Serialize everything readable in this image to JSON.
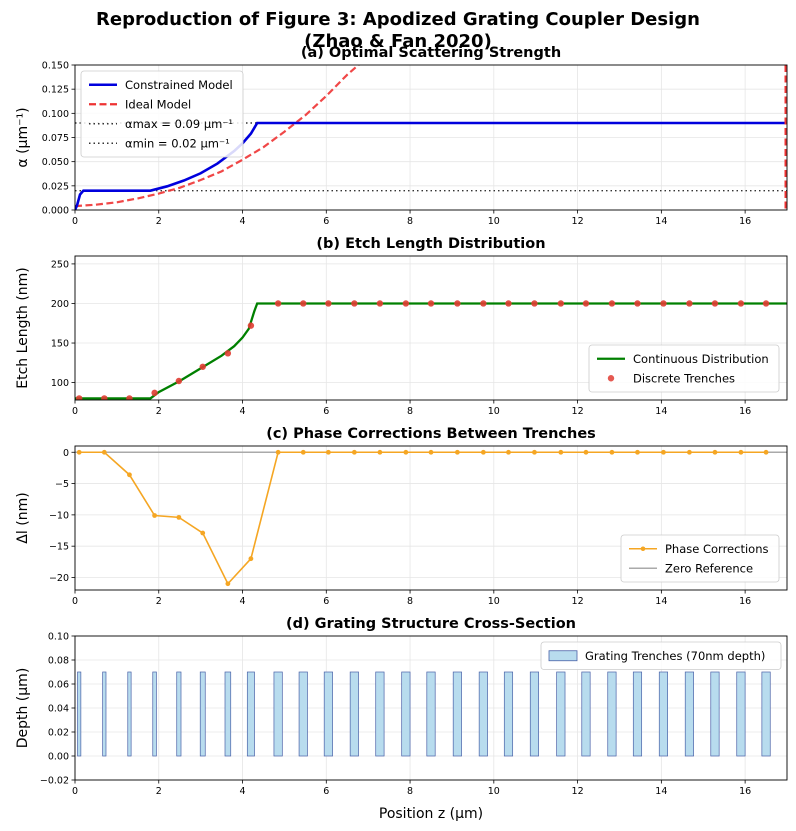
{
  "figure": {
    "title_line1": "Reproduction of Figure 3: Apodized Grating Coupler Design",
    "title_line2": "(Zhao & Fan 2020)"
  },
  "colors": {
    "constrained": "#0000dd",
    "ideal": "#ee3333",
    "limits": "#333333",
    "continuous": "#008000",
    "discrete": "#e03c32",
    "phase": "#f5a623",
    "zero": "#aaaaaa",
    "trench_fill": "#b8dcee",
    "trench_edge": "#4a62a8"
  },
  "chart_data": [
    {
      "type": "line",
      "title": "(a) Optimal Scattering Strength",
      "ylabel": "α (μm⁻¹)",
      "xlim": [
        0,
        17
      ],
      "ylim": [
        0,
        0.15
      ],
      "xticks": [
        "0",
        "2",
        "4",
        "6",
        "8",
        "10",
        "12",
        "14",
        "16"
      ],
      "yticks": [
        "0.000",
        "0.025",
        "0.050",
        "0.075",
        "0.100",
        "0.125",
        "0.150"
      ],
      "legend_position": "upper-left",
      "series": [
        {
          "name": "Constrained Model",
          "style": "solid",
          "x": [
            0,
            0.05,
            0.12,
            0.2,
            1.8,
            2.2,
            2.6,
            3.0,
            3.4,
            3.8,
            4.0,
            4.2,
            4.35,
            17
          ],
          "y": [
            0,
            0.005,
            0.016,
            0.02,
            0.02,
            0.0245,
            0.0305,
            0.038,
            0.048,
            0.061,
            0.069,
            0.079,
            0.09,
            0.09
          ]
        },
        {
          "name": "Ideal Model",
          "style": "dashed",
          "x": [
            0,
            0.5,
            1.0,
            1.5,
            2.0,
            2.5,
            3.0,
            3.5,
            4.0,
            4.5,
            5.0,
            5.5,
            6.0,
            6.5,
            6.9
          ],
          "y": [
            0.004,
            0.0055,
            0.008,
            0.012,
            0.017,
            0.023,
            0.031,
            0.04,
            0.052,
            0.065,
            0.081,
            0.098,
            0.118,
            0.14,
            0.155
          ]
        },
        {
          "name": "αmax = 0.09 μm⁻¹",
          "style": "dotted",
          "x": [
            0,
            17
          ],
          "y": [
            0.09,
            0.09
          ]
        },
        {
          "name": "αmin = 0.02 μm⁻¹",
          "style": "dotted",
          "x": [
            0,
            17
          ],
          "y": [
            0.02,
            0.02
          ]
        }
      ]
    },
    {
      "type": "line",
      "title": "(b) Etch Length Distribution",
      "ylabel": "Etch Length (nm)",
      "xlim": [
        0,
        17
      ],
      "ylim": [
        78,
        260
      ],
      "xticks": [
        "0",
        "2",
        "4",
        "6",
        "8",
        "10",
        "12",
        "14",
        "16"
      ],
      "yticks": [
        "100",
        "150",
        "200",
        "250"
      ],
      "legend_position": "lower-right",
      "series": [
        {
          "name": "Continuous Distribution",
          "style": "solid",
          "x": [
            0,
            1.8,
            2.0,
            2.5,
            3.0,
            3.5,
            3.8,
            4.0,
            4.15,
            4.28,
            4.35,
            17
          ],
          "y": [
            80,
            80,
            88,
            102,
            118,
            134,
            146,
            157,
            168,
            190,
            200,
            200
          ]
        },
        {
          "name": "Discrete Trenches",
          "style": "markers",
          "x": [
            0.1,
            0.7,
            1.3,
            1.9,
            2.48,
            3.05,
            3.65,
            4.2,
            4.85,
            5.45,
            6.05,
            6.67,
            7.28,
            7.9,
            8.5,
            9.13,
            9.75,
            10.35,
            10.97,
            11.6,
            12.2,
            12.82,
            13.43,
            14.05,
            14.67,
            15.28,
            15.9,
            16.5
          ],
          "y": [
            80,
            80,
            80,
            87,
            102,
            120,
            137,
            172,
            200,
            200,
            200,
            200,
            200,
            200,
            200,
            200,
            200,
            200,
            200,
            200,
            200,
            200,
            200,
            200,
            200,
            200,
            200,
            200
          ]
        }
      ]
    },
    {
      "type": "line",
      "title": "(c) Phase Corrections Between Trenches",
      "ylabel": "Δl (nm)",
      "xlim": [
        0,
        17
      ],
      "ylim": [
        -22,
        1
      ],
      "xticks": [
        "0",
        "2",
        "4",
        "6",
        "8",
        "10",
        "12",
        "14",
        "16"
      ],
      "yticks": [
        "0",
        "−5",
        "−10",
        "−15",
        "−20"
      ],
      "legend_position": "lower-right",
      "series": [
        {
          "name": "Phase Corrections",
          "style": "line-markers",
          "x": [
            0.1,
            0.7,
            1.3,
            1.9,
            2.48,
            3.05,
            3.65,
            4.2,
            4.85,
            5.45,
            6.05,
            6.67,
            7.28,
            7.9,
            8.5,
            9.13,
            9.75,
            10.35,
            10.97,
            11.6,
            12.2,
            12.82,
            13.43,
            14.05,
            14.67,
            15.28,
            15.9,
            16.5
          ],
          "y": [
            0,
            0,
            -3.6,
            -10.1,
            -10.4,
            -12.9,
            -21.0,
            -17.0,
            0,
            0,
            0,
            0,
            0,
            0,
            0,
            0,
            0,
            0,
            0,
            0,
            0,
            0,
            0,
            0,
            0,
            0,
            0,
            0
          ]
        },
        {
          "name": "Zero Reference",
          "style": "solid",
          "x": [
            0,
            17
          ],
          "y": [
            0,
            0
          ]
        }
      ]
    },
    {
      "type": "bar",
      "title": "(d) Grating Structure Cross-Section",
      "xlabel": "Position z (μm)",
      "ylabel": "Depth (μm)",
      "xlim": [
        0,
        17
      ],
      "ylim": [
        -0.02,
        0.1
      ],
      "xticks": [
        "0",
        "2",
        "4",
        "6",
        "8",
        "10",
        "12",
        "14",
        "16"
      ],
      "yticks": [
        "−0.02",
        "0.00",
        "0.02",
        "0.04",
        "0.06",
        "0.08",
        "0.10"
      ],
      "legend_position": "upper-right",
      "series": [
        {
          "name": "Grating Trenches (70nm depth)",
          "depth": 0.07,
          "x": [
            0.1,
            0.7,
            1.3,
            1.9,
            2.48,
            3.05,
            3.65,
            4.2,
            4.85,
            5.45,
            6.05,
            6.67,
            7.28,
            7.9,
            8.5,
            9.13,
            9.75,
            10.35,
            10.97,
            11.6,
            12.2,
            12.82,
            13.43,
            14.05,
            14.67,
            15.28,
            15.9,
            16.5
          ],
          "width": [
            0.08,
            0.08,
            0.08,
            0.087,
            0.102,
            0.12,
            0.137,
            0.172,
            0.2,
            0.2,
            0.2,
            0.2,
            0.2,
            0.2,
            0.2,
            0.2,
            0.2,
            0.2,
            0.2,
            0.2,
            0.2,
            0.2,
            0.2,
            0.2,
            0.2,
            0.2,
            0.2,
            0.2
          ]
        }
      ]
    }
  ]
}
